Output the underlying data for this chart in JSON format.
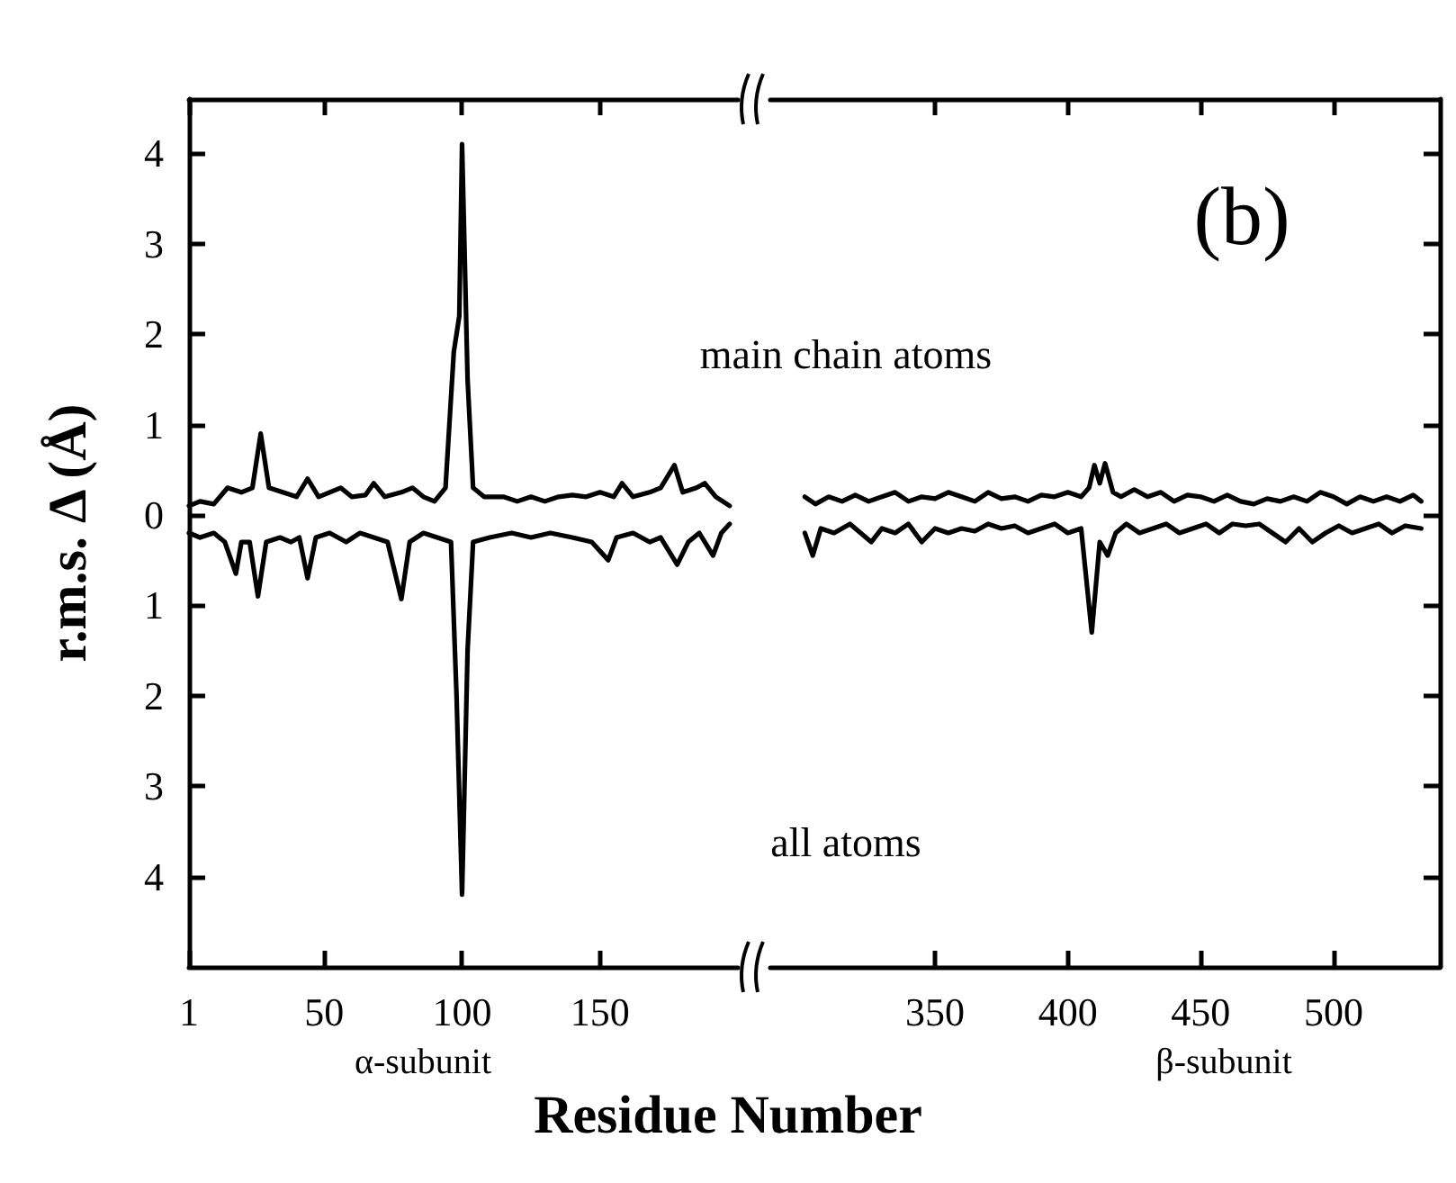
{
  "chart_data": [
    {
      "type": "line",
      "xlabel": "Residue Number",
      "ylabel": "r.m.s. Δ (Å)",
      "annotations": [
        "α-subunit"
      ],
      "xlim": [
        1,
        200
      ],
      "xticks": [
        1,
        50,
        100,
        150
      ],
      "ylim": [
        -5,
        4.6
      ],
      "yticks": [
        {
          "value": -4,
          "label": "4"
        },
        {
          "value": -3,
          "label": "3"
        },
        {
          "value": -2,
          "label": "2"
        },
        {
          "value": -1,
          "label": "1"
        },
        0,
        1,
        2,
        3,
        4
      ],
      "series": [
        {
          "color": "#000000",
          "x": [
            1,
            5,
            10,
            15,
            20,
            24,
            27,
            30,
            35,
            40,
            44,
            48,
            52,
            56,
            60,
            65,
            68,
            72,
            78,
            82,
            86,
            90,
            94,
            97,
            99,
            100,
            102,
            104,
            108,
            115,
            120,
            125,
            130,
            135,
            140,
            145,
            150,
            155,
            158,
            162,
            168,
            172,
            177,
            180,
            185,
            188,
            192,
            197
          ],
          "values": [
            0.1,
            0.15,
            0.12,
            0.3,
            0.25,
            0.3,
            0.9,
            0.3,
            0.25,
            0.2,
            0.4,
            0.2,
            0.25,
            0.3,
            0.2,
            0.22,
            0.35,
            0.2,
            0.25,
            0.3,
            0.2,
            0.15,
            0.3,
            1.8,
            2.2,
            4.1,
            1.5,
            0.3,
            0.2,
            0.2,
            0.15,
            0.2,
            0.15,
            0.2,
            0.22,
            0.2,
            0.25,
            0.2,
            0.35,
            0.2,
            0.25,
            0.3,
            0.55,
            0.25,
            0.3,
            0.35,
            0.2,
            0.1
          ]
        },
        {
          "color": "#000000",
          "x": [
            1,
            5,
            10,
            14,
            18,
            20,
            23,
            26,
            29,
            34,
            38,
            41,
            44,
            47,
            52,
            58,
            63,
            68,
            73,
            78,
            81,
            86,
            91,
            96,
            98,
            100,
            102,
            104,
            110,
            118,
            125,
            132,
            140,
            147,
            153,
            156,
            162,
            168,
            172,
            178,
            182,
            186,
            191,
            194,
            197
          ],
          "values": [
            -0.2,
            -0.25,
            -0.2,
            -0.3,
            -0.65,
            -0.3,
            -0.3,
            -0.9,
            -0.3,
            -0.25,
            -0.3,
            -0.25,
            -0.7,
            -0.25,
            -0.2,
            -0.3,
            -0.2,
            -0.25,
            -0.3,
            -0.93,
            -0.3,
            -0.2,
            -0.25,
            -0.3,
            -2.0,
            -4.2,
            -1.5,
            -0.3,
            -0.25,
            -0.2,
            -0.25,
            -0.2,
            -0.25,
            -0.3,
            -0.5,
            -0.25,
            -0.2,
            -0.3,
            -0.25,
            -0.55,
            -0.3,
            -0.2,
            -0.45,
            -0.2,
            -0.1
          ]
        }
      ]
    },
    {
      "type": "line",
      "tick_labels": "x",
      "annotations": [
        "(b)",
        "main chain atoms",
        "all atoms",
        "β-subunit"
      ],
      "xlim": [
        288,
        540
      ],
      "xticks": [
        350,
        400,
        450,
        500
      ],
      "ylim": [
        -5,
        4.6
      ],
      "yticks": [
        {
          "value": -4,
          "label": null
        },
        {
          "value": -3,
          "label": null
        },
        {
          "value": -2,
          "label": null
        },
        {
          "value": -1,
          "label": null
        },
        {
          "value": 0,
          "label": null
        },
        {
          "value": 1,
          "label": null
        },
        {
          "value": 2,
          "label": null
        },
        {
          "value": 3,
          "label": null
        },
        {
          "value": 4,
          "label": null
        }
      ],
      "series": [
        {
          "color": "#000000",
          "x": [
            301,
            305,
            310,
            315,
            320,
            325,
            330,
            335,
            340,
            345,
            350,
            355,
            360,
            365,
            370,
            375,
            380,
            385,
            390,
            395,
            400,
            405,
            408,
            410,
            412,
            414,
            417,
            420,
            425,
            430,
            435,
            440,
            445,
            450,
            455,
            460,
            465,
            470,
            475,
            480,
            485,
            490,
            495,
            500,
            505,
            510,
            515,
            520,
            525,
            530,
            533
          ],
          "values": [
            0.2,
            0.12,
            0.2,
            0.15,
            0.22,
            0.15,
            0.2,
            0.25,
            0.15,
            0.2,
            0.18,
            0.25,
            0.2,
            0.15,
            0.25,
            0.18,
            0.2,
            0.15,
            0.22,
            0.2,
            0.25,
            0.2,
            0.3,
            0.55,
            0.35,
            0.57,
            0.25,
            0.2,
            0.28,
            0.2,
            0.25,
            0.15,
            0.22,
            0.2,
            0.15,
            0.22,
            0.15,
            0.12,
            0.18,
            0.15,
            0.2,
            0.15,
            0.25,
            0.2,
            0.12,
            0.2,
            0.15,
            0.2,
            0.15,
            0.22,
            0.15
          ]
        },
        {
          "color": "#000000",
          "x": [
            301,
            304,
            307,
            312,
            318,
            322,
            326,
            330,
            335,
            340,
            345,
            350,
            355,
            360,
            365,
            370,
            375,
            380,
            385,
            390,
            395,
            400,
            405,
            409,
            412,
            415,
            418,
            422,
            427,
            432,
            437,
            442,
            447,
            452,
            457,
            462,
            467,
            472,
            477,
            482,
            487,
            492,
            497,
            502,
            507,
            512,
            517,
            522,
            527,
            533
          ],
          "values": [
            -0.2,
            -0.45,
            -0.15,
            -0.2,
            -0.1,
            -0.2,
            -0.3,
            -0.15,
            -0.2,
            -0.1,
            -0.3,
            -0.15,
            -0.2,
            -0.15,
            -0.18,
            -0.1,
            -0.15,
            -0.12,
            -0.2,
            -0.15,
            -0.1,
            -0.2,
            -0.15,
            -1.3,
            -0.3,
            -0.45,
            -0.2,
            -0.1,
            -0.2,
            -0.15,
            -0.1,
            -0.2,
            -0.15,
            -0.1,
            -0.2,
            -0.1,
            -0.12,
            -0.1,
            -0.2,
            -0.3,
            -0.15,
            -0.3,
            -0.2,
            -0.12,
            -0.2,
            -0.15,
            -0.1,
            -0.2,
            -0.12,
            -0.15
          ]
        }
      ]
    }
  ]
}
